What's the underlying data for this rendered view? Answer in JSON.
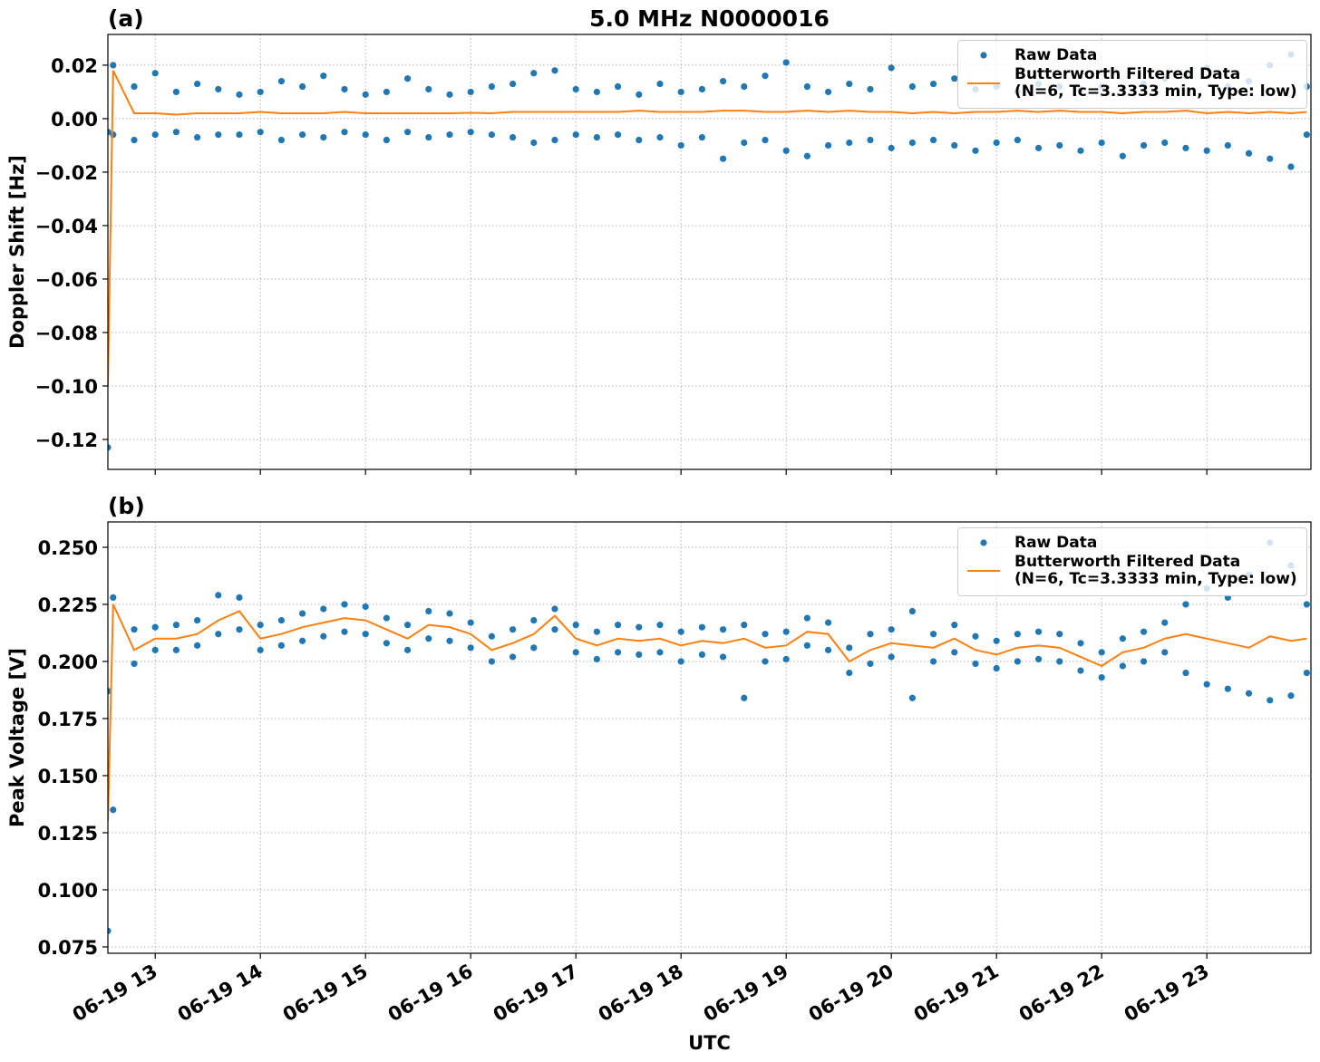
{
  "chart_data": [
    {
      "type": "line",
      "title": "5.0 MHz N0000016",
      "panel_label": "(a)",
      "ylabel": "Doppler Shift [Hz]",
      "xlim": [
        12.55,
        23.99
      ],
      "xticks": [
        13,
        14,
        15,
        16,
        17,
        18,
        19,
        20,
        21,
        22,
        23
      ],
      "ylim": [
        -0.1312,
        0.0315
      ],
      "yticks": [
        {
          "value": -0.12,
          "label": "−0.12"
        },
        {
          "value": -0.1,
          "label": "−0.10"
        },
        {
          "value": -0.08,
          "label": "−0.08"
        },
        {
          "value": -0.06,
          "label": "−0.06"
        },
        {
          "value": -0.04,
          "label": "−0.04"
        },
        {
          "value": -0.02,
          "label": "−0.02"
        },
        {
          "value": 0,
          "label": "0.00"
        },
        {
          "value": 0.02,
          "label": "0.02"
        }
      ],
      "grid": true,
      "legend": "upper right",
      "series": [
        {
          "name": "Raw Data",
          "mode": "markers",
          "color": "#1f77b4",
          "x": [
            12.55,
            12.6,
            12.8,
            13.0,
            13.2,
            13.4,
            13.6,
            13.8,
            14.0,
            14.2,
            14.4,
            14.6,
            14.8,
            15.0,
            15.2,
            15.4,
            15.6,
            15.8,
            16.0,
            16.2,
            16.4,
            16.6,
            16.8,
            17.0,
            17.2,
            17.4,
            17.6,
            17.8,
            18.0,
            18.2,
            18.4,
            18.6,
            18.8,
            19.0,
            19.2,
            19.4,
            19.6,
            19.8,
            20.0,
            20.2,
            20.4,
            20.6,
            20.8,
            21.0,
            21.2,
            21.4,
            21.6,
            21.8,
            22.0,
            22.2,
            22.4,
            22.6,
            22.8,
            23.0,
            23.2,
            23.4,
            23.6,
            23.8,
            23.95,
            12.55,
            12.6,
            12.8,
            13.0,
            13.2,
            13.4,
            13.6,
            13.8,
            14.0,
            14.2,
            14.4,
            14.6,
            14.8,
            15.0,
            15.2,
            15.4,
            15.6,
            15.8,
            16.0,
            16.2,
            16.4,
            16.6,
            16.8,
            17.0,
            17.2,
            17.4,
            17.6,
            17.8,
            18.0,
            18.2,
            18.4,
            18.6,
            18.8,
            19.0,
            19.2,
            19.4,
            19.6,
            19.8,
            20.0,
            20.2,
            20.4,
            20.6,
            20.8,
            21.0,
            21.2,
            21.4,
            21.6,
            21.8,
            22.0,
            22.2,
            22.4,
            22.6,
            22.8,
            23.0,
            23.2,
            23.4,
            23.6,
            23.8,
            23.95
          ],
          "values": [
            -0.123,
            0.02,
            0.012,
            0.017,
            0.01,
            0.013,
            0.011,
            0.009,
            0.01,
            0.014,
            0.012,
            0.016,
            0.011,
            0.009,
            0.01,
            0.015,
            0.011,
            0.009,
            0.01,
            0.012,
            0.013,
            0.017,
            0.018,
            0.011,
            0.01,
            0.012,
            0.009,
            0.013,
            0.01,
            0.011,
            0.014,
            0.012,
            0.016,
            0.021,
            0.012,
            0.01,
            0.013,
            0.011,
            0.019,
            0.012,
            0.013,
            0.015,
            0.011,
            0.012,
            0.01,
            0.013,
            0.012,
            0.011,
            0.012,
            0.011,
            0.013,
            0.015,
            0.016,
            0.019,
            0.012,
            0.014,
            0.02,
            0.024,
            0.012,
            -0.005,
            -0.006,
            -0.008,
            -0.006,
            -0.005,
            -0.007,
            -0.006,
            -0.006,
            -0.005,
            -0.008,
            -0.006,
            -0.007,
            -0.005,
            -0.006,
            -0.008,
            -0.005,
            -0.007,
            -0.006,
            -0.005,
            -0.006,
            -0.007,
            -0.009,
            -0.008,
            -0.006,
            -0.007,
            -0.006,
            -0.008,
            -0.007,
            -0.01,
            -0.007,
            -0.015,
            -0.009,
            -0.008,
            -0.012,
            -0.014,
            -0.01,
            -0.009,
            -0.008,
            -0.011,
            -0.009,
            -0.008,
            -0.01,
            -0.012,
            -0.009,
            -0.008,
            -0.011,
            -0.01,
            -0.012,
            -0.009,
            -0.014,
            -0.01,
            -0.009,
            -0.011,
            -0.012,
            -0.01,
            -0.013,
            -0.015,
            -0.018,
            -0.006
          ]
        },
        {
          "name": "Butterworth Filtered Data\n(N=6, Tc=3.3333 min, Type: low)",
          "mode": "lines",
          "color": "#ff7f0e",
          "x": [
            12.55,
            12.6,
            12.8,
            13.0,
            13.2,
            13.4,
            13.6,
            13.8,
            14.0,
            14.2,
            14.4,
            14.6,
            14.8,
            15.0,
            15.2,
            15.4,
            15.6,
            15.8,
            16.0,
            16.2,
            16.4,
            16.6,
            16.8,
            17.0,
            17.2,
            17.4,
            17.6,
            17.8,
            18.0,
            18.2,
            18.4,
            18.6,
            18.8,
            19.0,
            19.2,
            19.4,
            19.6,
            19.8,
            20.0,
            20.2,
            20.4,
            20.6,
            20.8,
            21.0,
            21.2,
            21.4,
            21.6,
            21.8,
            22.0,
            22.2,
            22.4,
            22.6,
            22.8,
            23.0,
            23.2,
            23.4,
            23.6,
            23.8,
            23.95
          ],
          "values": [
            -0.1,
            0.018,
            0.002,
            0.002,
            0.0015,
            0.002,
            0.002,
            0.002,
            0.0025,
            0.002,
            0.002,
            0.002,
            0.0025,
            0.002,
            0.002,
            0.002,
            0.002,
            0.002,
            0.0022,
            0.002,
            0.0025,
            0.0025,
            0.0025,
            0.0025,
            0.0025,
            0.0025,
            0.003,
            0.0025,
            0.0025,
            0.0025,
            0.003,
            0.003,
            0.0025,
            0.0025,
            0.003,
            0.0025,
            0.003,
            0.0025,
            0.0025,
            0.002,
            0.0025,
            0.002,
            0.0025,
            0.0025,
            0.003,
            0.0025,
            0.003,
            0.0025,
            0.0025,
            0.002,
            0.0025,
            0.0025,
            0.003,
            0.002,
            0.0025,
            0.002,
            0.0025,
            0.002,
            0.0025
          ]
        }
      ]
    },
    {
      "type": "line",
      "panel_label": "(b)",
      "ylabel": "Peak Voltage [V]",
      "xlabel": "UTC",
      "xlim": [
        12.55,
        23.99
      ],
      "xticks": [
        {
          "value": 13,
          "label": "06-19 13"
        },
        {
          "value": 14,
          "label": "06-19 14"
        },
        {
          "value": 15,
          "label": "06-19 15"
        },
        {
          "value": 16,
          "label": "06-19 16"
        },
        {
          "value": 17,
          "label": "06-19 17"
        },
        {
          "value": 18,
          "label": "06-19 18"
        },
        {
          "value": 19,
          "label": "06-19 19"
        },
        {
          "value": 20,
          "label": "06-19 20"
        },
        {
          "value": 21,
          "label": "06-19 21"
        },
        {
          "value": 22,
          "label": "06-19 22"
        },
        {
          "value": 23,
          "label": "06-19 23"
        }
      ],
      "ylim": [
        0.0722,
        0.2611
      ],
      "yticks": [
        {
          "value": 0.075,
          "label": "0.075"
        },
        {
          "value": 0.1,
          "label": "0.100"
        },
        {
          "value": 0.125,
          "label": "0.125"
        },
        {
          "value": 0.15,
          "label": "0.150"
        },
        {
          "value": 0.175,
          "label": "0.175"
        },
        {
          "value": 0.2,
          "label": "0.200"
        },
        {
          "value": 0.225,
          "label": "0.225"
        },
        {
          "value": 0.25,
          "label": "0.250"
        }
      ],
      "grid": true,
      "legend": "upper right",
      "series": [
        {
          "name": "Raw Data",
          "mode": "markers",
          "color": "#1f77b4",
          "x": [
            12.55,
            12.6,
            12.8,
            13.0,
            13.2,
            13.4,
            13.6,
            13.8,
            14.0,
            14.2,
            14.4,
            14.6,
            14.8,
            15.0,
            15.2,
            15.4,
            15.6,
            15.8,
            16.0,
            16.2,
            16.4,
            16.6,
            16.8,
            17.0,
            17.2,
            17.4,
            17.6,
            17.8,
            18.0,
            18.2,
            18.4,
            18.6,
            18.8,
            19.0,
            19.2,
            19.4,
            19.6,
            19.8,
            20.0,
            20.2,
            20.4,
            20.6,
            20.8,
            21.0,
            21.2,
            21.4,
            21.6,
            21.8,
            22.0,
            22.2,
            22.4,
            22.6,
            22.8,
            23.0,
            23.2,
            23.4,
            23.6,
            23.8,
            23.95,
            12.55,
            12.6,
            12.8,
            13.0,
            13.2,
            13.4,
            13.6,
            13.8,
            14.0,
            14.2,
            14.4,
            14.6,
            14.8,
            15.0,
            15.2,
            15.4,
            15.6,
            15.8,
            16.0,
            16.2,
            16.4,
            16.6,
            16.8,
            17.0,
            17.2,
            17.4,
            17.6,
            17.8,
            18.0,
            18.2,
            18.4,
            18.6,
            18.8,
            19.0,
            19.2,
            19.4,
            19.6,
            19.8,
            20.0,
            20.2,
            20.4,
            20.6,
            20.8,
            21.0,
            21.2,
            21.4,
            21.6,
            21.8,
            22.0,
            22.2,
            22.4,
            22.6,
            22.8,
            23.0,
            23.2,
            23.4,
            23.6,
            23.8,
            23.95
          ],
          "values": [
            0.187,
            0.228,
            0.214,
            0.215,
            0.216,
            0.218,
            0.229,
            0.228,
            0.216,
            0.218,
            0.221,
            0.223,
            0.225,
            0.224,
            0.219,
            0.216,
            0.222,
            0.221,
            0.217,
            0.211,
            0.214,
            0.218,
            0.223,
            0.216,
            0.213,
            0.216,
            0.215,
            0.216,
            0.213,
            0.215,
            0.214,
            0.216,
            0.212,
            0.213,
            0.219,
            0.217,
            0.206,
            0.212,
            0.214,
            0.222,
            0.212,
            0.216,
            0.211,
            0.209,
            0.212,
            0.213,
            0.212,
            0.208,
            0.204,
            0.21,
            0.213,
            0.217,
            0.225,
            0.232,
            0.228,
            0.238,
            0.252,
            0.242,
            0.225,
            0.082,
            0.135,
            0.199,
            0.205,
            0.205,
            0.207,
            0.212,
            0.214,
            0.205,
            0.207,
            0.209,
            0.211,
            0.213,
            0.212,
            0.208,
            0.205,
            0.21,
            0.209,
            0.206,
            0.2,
            0.202,
            0.206,
            0.214,
            0.204,
            0.201,
            0.204,
            0.203,
            0.204,
            0.2,
            0.203,
            0.202,
            0.184,
            0.2,
            0.201,
            0.207,
            0.205,
            0.195,
            0.199,
            0.202,
            0.184,
            0.2,
            0.204,
            0.199,
            0.197,
            0.2,
            0.201,
            0.2,
            0.196,
            0.193,
            0.198,
            0.2,
            0.204,
            0.195,
            0.19,
            0.188,
            0.186,
            0.183,
            0.185,
            0.195
          ]
        },
        {
          "name": "Butterworth Filtered Data\n(N=6, Tc=3.3333 min, Type: low)",
          "mode": "lines",
          "color": "#ff7f0e",
          "x": [
            12.55,
            12.6,
            12.8,
            13.0,
            13.2,
            13.4,
            13.6,
            13.8,
            14.0,
            14.2,
            14.4,
            14.6,
            14.8,
            15.0,
            15.2,
            15.4,
            15.6,
            15.8,
            16.0,
            16.2,
            16.4,
            16.6,
            16.8,
            17.0,
            17.2,
            17.4,
            17.6,
            17.8,
            18.0,
            18.2,
            18.4,
            18.6,
            18.8,
            19.0,
            19.2,
            19.4,
            19.6,
            19.8,
            20.0,
            20.2,
            20.4,
            20.6,
            20.8,
            21.0,
            21.2,
            21.4,
            21.6,
            21.8,
            22.0,
            22.2,
            22.4,
            22.6,
            22.8,
            23.0,
            23.2,
            23.4,
            23.6,
            23.8,
            23.95
          ],
          "values": [
            0.13,
            0.225,
            0.205,
            0.21,
            0.21,
            0.212,
            0.218,
            0.222,
            0.21,
            0.212,
            0.215,
            0.217,
            0.219,
            0.218,
            0.214,
            0.21,
            0.216,
            0.215,
            0.212,
            0.205,
            0.208,
            0.212,
            0.22,
            0.21,
            0.207,
            0.21,
            0.209,
            0.21,
            0.207,
            0.209,
            0.208,
            0.21,
            0.206,
            0.207,
            0.213,
            0.212,
            0.2,
            0.205,
            0.208,
            0.207,
            0.206,
            0.21,
            0.205,
            0.203,
            0.206,
            0.207,
            0.206,
            0.202,
            0.198,
            0.204,
            0.206,
            0.21,
            0.212,
            0.21,
            0.208,
            0.206,
            0.211,
            0.209,
            0.21
          ]
        }
      ]
    }
  ]
}
